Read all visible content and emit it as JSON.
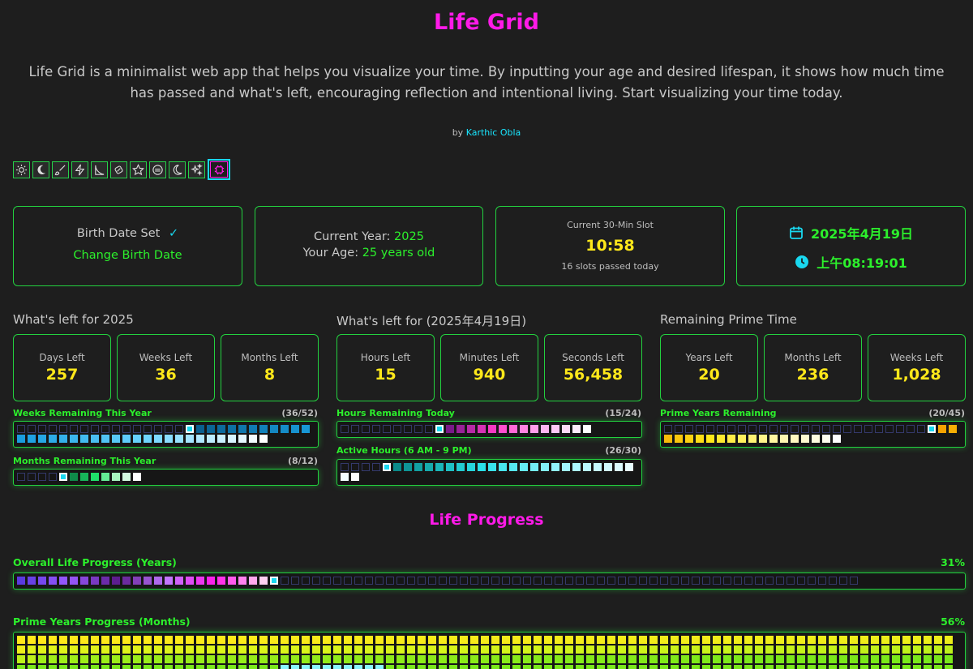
{
  "header": {
    "title": "Life Grid",
    "description": "Life Grid is a minimalist web app that helps you visualize your time. By inputting your age and desired lifespan, it shows how much time has passed and what's left, encouraging reflection and intentional living. Start visualizing your time today.",
    "by_prefix": "by",
    "author": "Karthic Obla"
  },
  "themes": [
    "sun-icon",
    "moon-icon",
    "brush-icon",
    "lightning-icon",
    "slope-icon",
    "candy-icon",
    "star-icon",
    "circle-minus-icon",
    "crescent-icon",
    "sparkles-icon",
    "chip-icon"
  ],
  "cards": {
    "birth": {
      "status": "Birth Date Set",
      "check": "✓",
      "change_label": "Change Birth Date"
    },
    "year": {
      "year_prefix": "Current Year:",
      "year": "2025",
      "age_prefix": "Your Age:",
      "age": "25 years old"
    },
    "slot": {
      "label": "Current 30-Min Slot",
      "time": "10:58",
      "passed": "16 slots passed today"
    },
    "clock": {
      "date": "2025年4月19日",
      "time": "上午08:19:01"
    }
  },
  "sections": {
    "year": {
      "title": "What's left for 2025",
      "stats": [
        {
          "label": "Days Left",
          "value": "257"
        },
        {
          "label": "Weeks Left",
          "value": "36"
        },
        {
          "label": "Months Left",
          "value": "8"
        }
      ]
    },
    "day": {
      "title": "What's left for (2025年4月19日)",
      "stats": [
        {
          "label": "Hours Left",
          "value": "15"
        },
        {
          "label": "Minutes Left",
          "value": "940"
        },
        {
          "label": "Seconds Left",
          "value": "56,458"
        }
      ]
    },
    "prime": {
      "title": "Remaining Prime Time",
      "stats": [
        {
          "label": "Years Left",
          "value": "20"
        },
        {
          "label": "Months Left",
          "value": "236"
        },
        {
          "label": "Weeks Left",
          "value": "1,028"
        }
      ]
    }
  },
  "bars": {
    "weeks": {
      "label": "Weeks Remaining This Year",
      "count": "(36/52)",
      "total": 52,
      "passed": 16
    },
    "months": {
      "label": "Months Remaining This Year",
      "count": "(8/12)",
      "total": 12,
      "passed": 4
    },
    "hours": {
      "label": "Hours Remaining Today",
      "count": "(15/24)",
      "total": 24,
      "passed": 9
    },
    "active": {
      "label": "Active Hours (6 AM - 9 PM)",
      "count": "(26/30)",
      "total": 30,
      "passed": 4
    },
    "prime_years": {
      "label": "Prime Years Remaining",
      "count": "(20/45)",
      "total": 45,
      "passed": 25
    }
  },
  "life": {
    "title": "Life Progress",
    "overall": {
      "label": "Overall Life Progress (Years)",
      "pct": "31%",
      "total": 80,
      "passed": 24
    },
    "prime_months": {
      "label": "Prime Years Progress (Months)",
      "pct": "56%"
    }
  },
  "colors": {
    "accent_green": "#2cf02c",
    "accent_magenta": "#ff1ae8",
    "accent_cyan": "#19d8f0",
    "accent_yellow": "#ffe81a",
    "background": "#1e1e1e"
  }
}
